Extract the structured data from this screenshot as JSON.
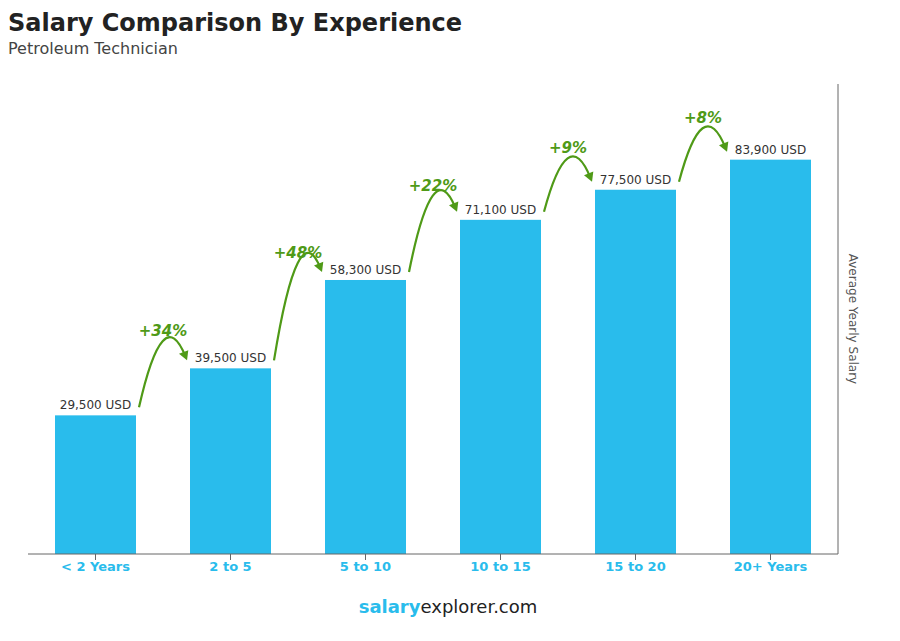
{
  "chart_data": {
    "type": "bar",
    "title": "Salary Comparison By Experience",
    "subtitle": "Petroleum Technician",
    "ylabel": "Average Yearly Salary",
    "categories": [
      "< 2 Years",
      "2 to 5",
      "5 to 10",
      "10 to 15",
      "15 to 20",
      "20+ Years"
    ],
    "values": [
      29500,
      39500,
      58300,
      71100,
      77500,
      83900
    ],
    "value_labels": [
      "29,500 USD",
      "39,500 USD",
      "58,300 USD",
      "71,100 USD",
      "77,500 USD",
      "83,900 USD"
    ],
    "data_labels": true,
    "color": "#29BCEC",
    "ylim": [
      0,
      100000
    ],
    "tick_labels": "x",
    "grid": false,
    "annotations": [
      {
        "text": "+34%",
        "from": "< 2 Years",
        "to": "2 to 5"
      },
      {
        "text": "+48%",
        "from": "2 to 5",
        "to": "5 to 10"
      },
      {
        "text": "+22%",
        "from": "5 to 10",
        "to": "10 to 15"
      },
      {
        "text": "+9%",
        "from": "10 to 15",
        "to": "15 to 20"
      },
      {
        "text": "+8%",
        "from": "15 to 20",
        "to": "20+ Years"
      }
    ],
    "footer": [
      "salary",
      "explorer.com"
    ]
  }
}
